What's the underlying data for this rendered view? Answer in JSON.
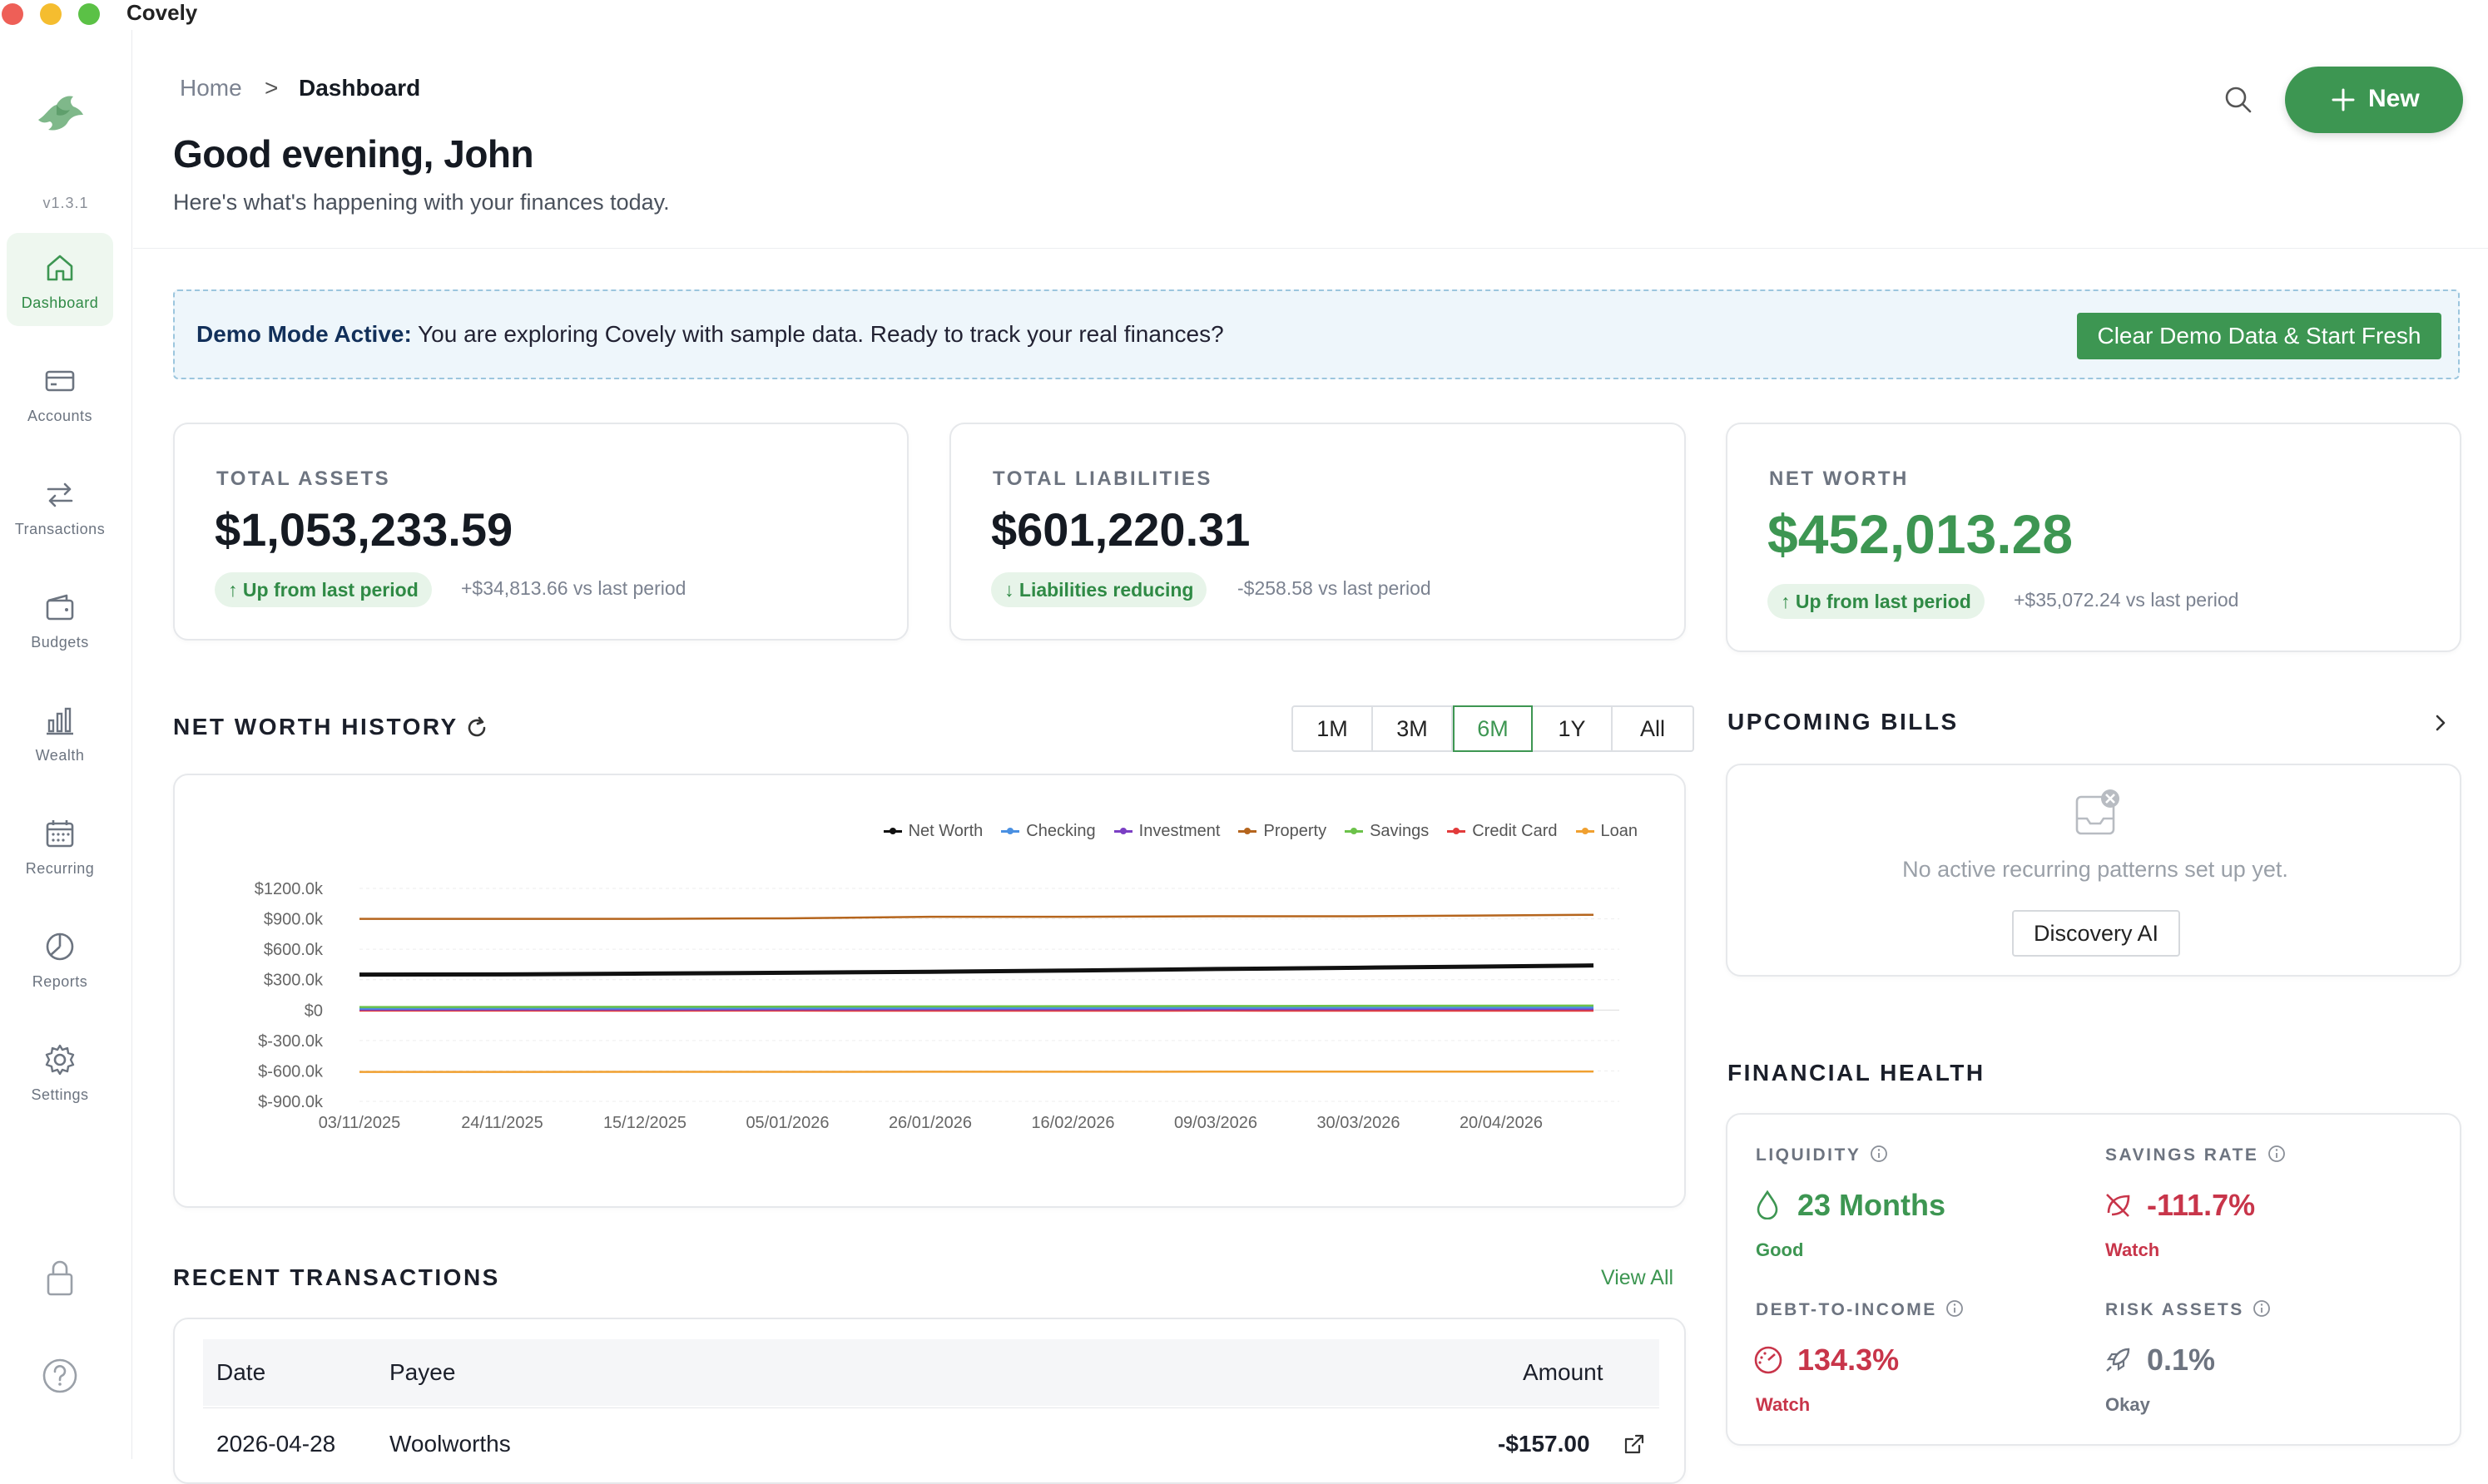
{
  "app": {
    "title": "Covely",
    "version": "v1.3.1"
  },
  "sidebar": {
    "items": [
      {
        "label": "Dashboard",
        "icon": "home-icon",
        "active": true
      },
      {
        "label": "Accounts",
        "icon": "card-icon"
      },
      {
        "label": "Transactions",
        "icon": "transfer-icon"
      },
      {
        "label": "Budgets",
        "icon": "wallet-icon"
      },
      {
        "label": "Wealth",
        "icon": "bar-chart-icon"
      },
      {
        "label": "Recurring",
        "icon": "calendar-icon"
      },
      {
        "label": "Reports",
        "icon": "pie-icon"
      },
      {
        "label": "Settings",
        "icon": "gear-icon"
      }
    ],
    "bottom": [
      {
        "icon": "lock-icon"
      },
      {
        "icon": "help-icon"
      }
    ]
  },
  "header": {
    "breadcrumb": {
      "home": "Home",
      "separator": ">",
      "current": "Dashboard"
    },
    "greeting": "Good evening, John",
    "subtitle": "Here's what's happening with your finances today.",
    "new_label": "New"
  },
  "banner": {
    "bold": "Demo Mode Active:",
    "text": " You are exploring Covely with sample data. Ready to track your real finances?",
    "button": "Clear Demo Data & Start Fresh"
  },
  "stats": {
    "assets": {
      "label": "TOTAL ASSETS",
      "value": "$1,053,233.59",
      "pill": "↑ Up from last period",
      "note": "+$34,813.66 vs last period"
    },
    "liabilities": {
      "label": "TOTAL LIABILITIES",
      "value": "$601,220.31",
      "pill": "↓ Liabilities reducing",
      "note": "-$258.58 vs last period"
    },
    "networth": {
      "label": "NET WORTH",
      "value": "$452,013.28",
      "pill": "↑ Up from last period",
      "note": "+$35,072.24 vs last period"
    }
  },
  "history": {
    "title": "NET WORTH HISTORY",
    "ranges": [
      "1M",
      "3M",
      "6M",
      "1Y",
      "All"
    ],
    "selected": "6M"
  },
  "colors": {
    "accent": "#3d9652",
    "net_worth": "#111111",
    "checking": "#4a90e2",
    "investment": "#7b3fc4",
    "property": "#b5651d",
    "savings": "#6cc24a",
    "credit_card": "#e23b3b",
    "loan": "#f0a030"
  },
  "chart_data": {
    "type": "line",
    "x": [
      "03/11/2025",
      "24/11/2025",
      "15/12/2025",
      "05/01/2026",
      "26/01/2026",
      "16/02/2026",
      "09/03/2026",
      "30/03/2026",
      "20/04/2026"
    ],
    "ylim": [
      -900,
      1200
    ],
    "yticks": [
      "$1200.0k",
      "$900.0k",
      "$600.0k",
      "$300.0k",
      "$0",
      "$-300.0k",
      "$-600.0k",
      "$-900.0k"
    ],
    "ytick_values": [
      1200,
      900,
      600,
      300,
      0,
      -300,
      -600,
      -900
    ],
    "series": [
      {
        "name": "Net Worth",
        "values": [
          350,
          352,
          360,
          368,
          378,
          390,
          405,
          418,
          440
        ]
      },
      {
        "name": "Checking",
        "values": [
          15,
          16,
          17,
          18,
          19,
          20,
          22,
          24,
          25
        ]
      },
      {
        "name": "Investment",
        "values": [
          5,
          6,
          6,
          7,
          8,
          8,
          9,
          10,
          11
        ]
      },
      {
        "name": "Property",
        "values": [
          900,
          900,
          900,
          905,
          920,
          920,
          925,
          925,
          940
        ]
      },
      {
        "name": "Savings",
        "values": [
          30,
          31,
          32,
          34,
          36,
          38,
          40,
          42,
          44
        ]
      },
      {
        "name": "Credit Card",
        "values": [
          -5,
          -5,
          -6,
          -5,
          -6,
          -6,
          -5,
          -6,
          -6
        ]
      },
      {
        "name": "Loan",
        "values": [
          -610,
          -610,
          -609,
          -609,
          -608,
          -608,
          -607,
          -607,
          -606
        ]
      }
    ]
  },
  "bills": {
    "title": "UPCOMING BILLS",
    "empty": "No active recurring patterns set up yet.",
    "button": "Discovery AI"
  },
  "health": {
    "title": "FINANCIAL HEALTH",
    "items": [
      {
        "label": "LIQUIDITY",
        "value": "23 Months",
        "status": "Good",
        "icon": "droplet-icon"
      },
      {
        "label": "SAVINGS RATE",
        "value": "-111.7%",
        "status": "Watch",
        "icon": "leaf-off-icon"
      },
      {
        "label": "DEBT-TO-INCOME",
        "value": "134.3%",
        "status": "Watch",
        "icon": "gauge-icon"
      },
      {
        "label": "RISK ASSETS",
        "value": "0.1%",
        "status": "Okay",
        "icon": "rocket-icon"
      }
    ]
  },
  "transactions": {
    "title": "RECENT TRANSACTIONS",
    "view_all": "View All",
    "columns": [
      "Date",
      "Payee",
      "Amount"
    ],
    "rows": [
      {
        "date": "2026-04-28",
        "payee": "Woolworths",
        "amount": "-$157.00"
      }
    ]
  }
}
